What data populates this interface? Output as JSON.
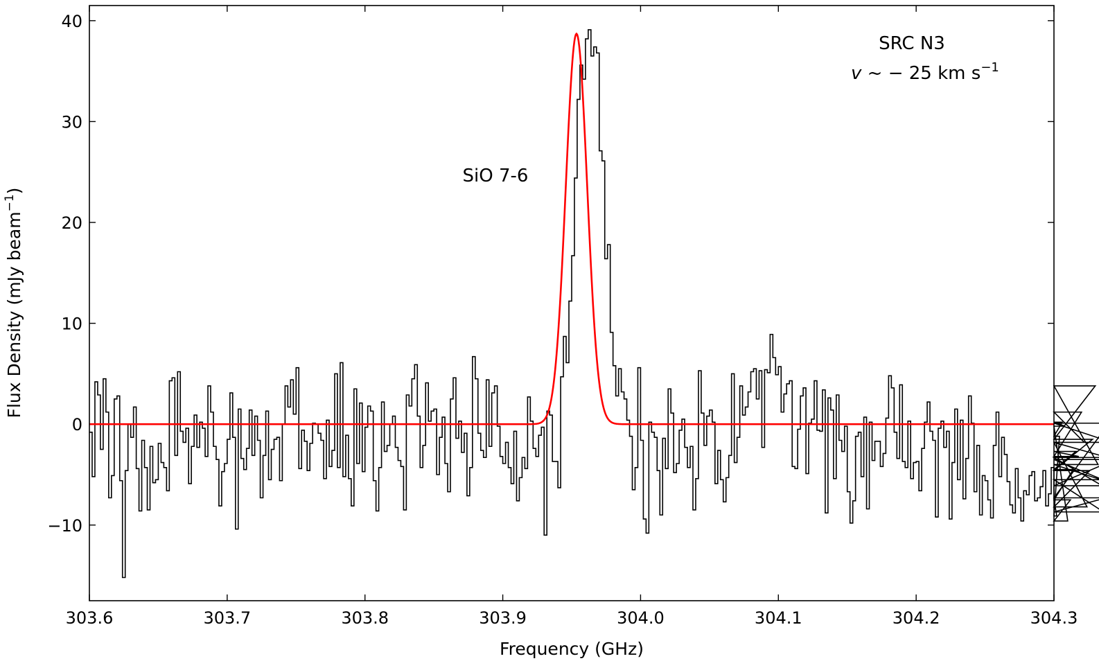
{
  "chart_data": {
    "type": "line",
    "xlabel": "Frequency (GHz)",
    "ylabel_main": "Flux Density (mJy beam",
    "ylabel_sup": "−1",
    "ylabel_close": ")",
    "xlim": [
      303.6,
      304.3
    ],
    "ylim": [
      -17.5,
      41.5
    ],
    "xticks": [
      303.6,
      303.7,
      303.8,
      303.9,
      304.0,
      304.1,
      304.2,
      304.3
    ],
    "xtick_labels": [
      "303.6",
      "303.7",
      "303.8",
      "303.9",
      "304.0",
      "304.1",
      "304.2",
      "304.3"
    ],
    "yticks": [
      -10,
      0,
      10,
      20,
      30,
      40
    ],
    "ytick_labels": [
      "−10",
      "0",
      "10",
      "20",
      "30",
      "40"
    ],
    "annotations": {
      "line_name": "SiO 7-6",
      "source": "SRC N3",
      "velocity_v": "v",
      "velocity_rest": " ~ − 25 km s",
      "velocity_sup": "−1"
    },
    "grid": false,
    "series": [
      {
        "style": "step",
        "color": "#000000",
        "x_start": 303.6,
        "x_step": 0.002,
        "values": [
          -0.8,
          -5.2,
          4.2,
          2.9,
          -2.5,
          4.5,
          1.2,
          -7.3,
          -5.1,
          2.5,
          2.8,
          -5.6,
          -15.2,
          -4.6,
          0.0,
          -1.3,
          1.7,
          -4.4,
          -8.6,
          -1.6,
          -4.3,
          -8.5,
          -2.2,
          -5.8,
          -5.5,
          -1.9,
          -3.8,
          -4.3,
          -6.6,
          4.3,
          4.6,
          -3.1,
          5.2,
          -0.7,
          -1.8,
          -0.4,
          -5.9,
          -2.2,
          0.9,
          -2.3,
          0.2,
          -0.4,
          -3.2,
          3.8,
          1.2,
          -2.2,
          -3.5,
          -8.1,
          -4.7,
          -3.9,
          -1.5,
          3.1,
          -1.3,
          -10.4,
          1.5,
          -3.4,
          -4.5,
          -2.4,
          1.4,
          -3.1,
          0.8,
          -1.6,
          -7.3,
          -3.1,
          1.3,
          -5.5,
          -2.5,
          -1.5,
          -1.3,
          -5.6,
          0.0,
          3.8,
          1.7,
          4.4,
          1.0,
          5.6,
          -4.4,
          -0.6,
          -1.7,
          -4.6,
          -1.9,
          0.1,
          0.0,
          -0.9,
          -1.6,
          -5.4,
          0.4,
          -4.2,
          -2.6,
          5.0,
          -4.3,
          6.1,
          -5.2,
          -1.1,
          -5.4,
          -8.1,
          3.5,
          -3.9,
          2.1,
          -4.7,
          -0.3,
          1.8,
          1.3,
          -5.6,
          -8.6,
          -4.3,
          2.2,
          -2.7,
          -2.1,
          0.0,
          0.8,
          -2.3,
          -3.6,
          -4.2,
          -8.5,
          2.9,
          1.8,
          4.5,
          5.9,
          0.8,
          -4.3,
          -2.1,
          4.1,
          0.3,
          1.3,
          1.5,
          -5.0,
          -1.3,
          0.7,
          -3.9,
          -6.7,
          2.5,
          4.6,
          -1.4,
          0.3,
          -2.8,
          -0.9,
          -7.1,
          -4.3,
          6.7,
          4.5,
          -0.9,
          -2.6,
          -3.3,
          4.4,
          -2.2,
          3.1,
          3.8,
          -0.2,
          -3.2,
          -3.9,
          -1.8,
          -4.3,
          -5.9,
          -0.7,
          -7.6,
          -5.3,
          -3.3,
          -4.4,
          2.7,
          0.3,
          -2.4,
          -3.2,
          -1.1,
          -0.3,
          -11.0,
          1.3,
          0.9,
          -3.7,
          -3.7,
          -6.3,
          4.7,
          8.7,
          6.1,
          12.2,
          16.7,
          24.4,
          32.2,
          35.6,
          34.2,
          38.2,
          39.1,
          36.5,
          37.4,
          36.8,
          27.1,
          26.1,
          16.4,
          17.8,
          9.1,
          5.8,
          2.8,
          5.5,
          3.2,
          2.5,
          0.4,
          -1.2,
          -6.5,
          -4.3,
          5.6,
          -1.6,
          -9.4,
          -10.8,
          0.2,
          -0.8,
          -1.3,
          -4.6,
          -9.0,
          -1.4,
          -4.4,
          3.5,
          1.1,
          -4.8,
          -3.9,
          -0.6,
          0.5,
          -2.3,
          -4.3,
          -2.2,
          -8.5,
          -5.4,
          5.3,
          1.1,
          -2.1,
          0.8,
          1.4,
          0.2,
          -5.9,
          -2.6,
          -5.5,
          -7.7,
          -5.3,
          -3.1,
          5.0,
          -3.8,
          -1.3,
          3.8,
          0.9,
          1.7,
          3.2,
          5.2,
          5.5,
          2.5,
          5.3,
          -2.3,
          5.4,
          5.1,
          8.9,
          6.6,
          4.9,
          5.7,
          1.2,
          3.0,
          4.0,
          4.3,
          -4.2,
          -4.4,
          -0.5,
          2.8,
          3.6,
          -4.9,
          0.1,
          0.5,
          4.3,
          -0.6,
          -0.7,
          3.4,
          -8.8,
          2.6,
          1.4,
          -5.4,
          2.9,
          -1.6,
          -2.7,
          -0.2,
          -6.7,
          -9.8,
          -7.6,
          -1.2,
          -0.8,
          -5.2,
          0.7,
          -8.4,
          0.2,
          -3.6,
          -1.7,
          -1.7,
          -4.2,
          -2.9,
          0.6,
          4.8,
          3.6,
          -0.8,
          -3.4,
          3.9,
          -3.7,
          -4.3,
          0.3,
          -5.4,
          -3.8,
          -3.7,
          -6.6,
          -2.4,
          0.2,
          2.2,
          -0.7,
          -1.6,
          -9.2,
          -0.4,
          0.3,
          -2.3,
          -0.7,
          -9.4,
          -3.8,
          1.5,
          -5.5,
          0.4,
          -7.4,
          -3.4,
          2.8,
          0.1,
          -6.7,
          -2.1,
          -9.0,
          -5.1,
          -5.6,
          -7.5,
          -9.3,
          -2.1,
          1.2,
          -5.2,
          -1.3,
          -3.0,
          -5.7,
          -8.0,
          -8.8,
          -4.4,
          -7.3,
          -9.6,
          -6.6,
          -7.0,
          -5.1,
          -4.7,
          -7.6,
          -7.3,
          -6.2,
          -4.6,
          -8.1,
          -6.9,
          -4.3,
          -7.4,
          -9.1,
          -1.2,
          0.2,
          -0.2,
          -9.6,
          -7.5,
          -4.5,
          -2.7,
          -3.2,
          1.2,
          -1.8,
          -8.2,
          -4.6,
          -1.5,
          3.8,
          -4.0,
          -5.5,
          -8.7,
          -7.3,
          0.1,
          -1.8,
          -3.5,
          -6.1,
          -3.3,
          -7.3
        ]
      },
      {
        "style": "gaussian_fit",
        "color": "#ff0000",
        "amplitude": 38.7,
        "center": 303.9535,
        "sigma": 0.0078,
        "baseline": 0.0
      }
    ]
  }
}
